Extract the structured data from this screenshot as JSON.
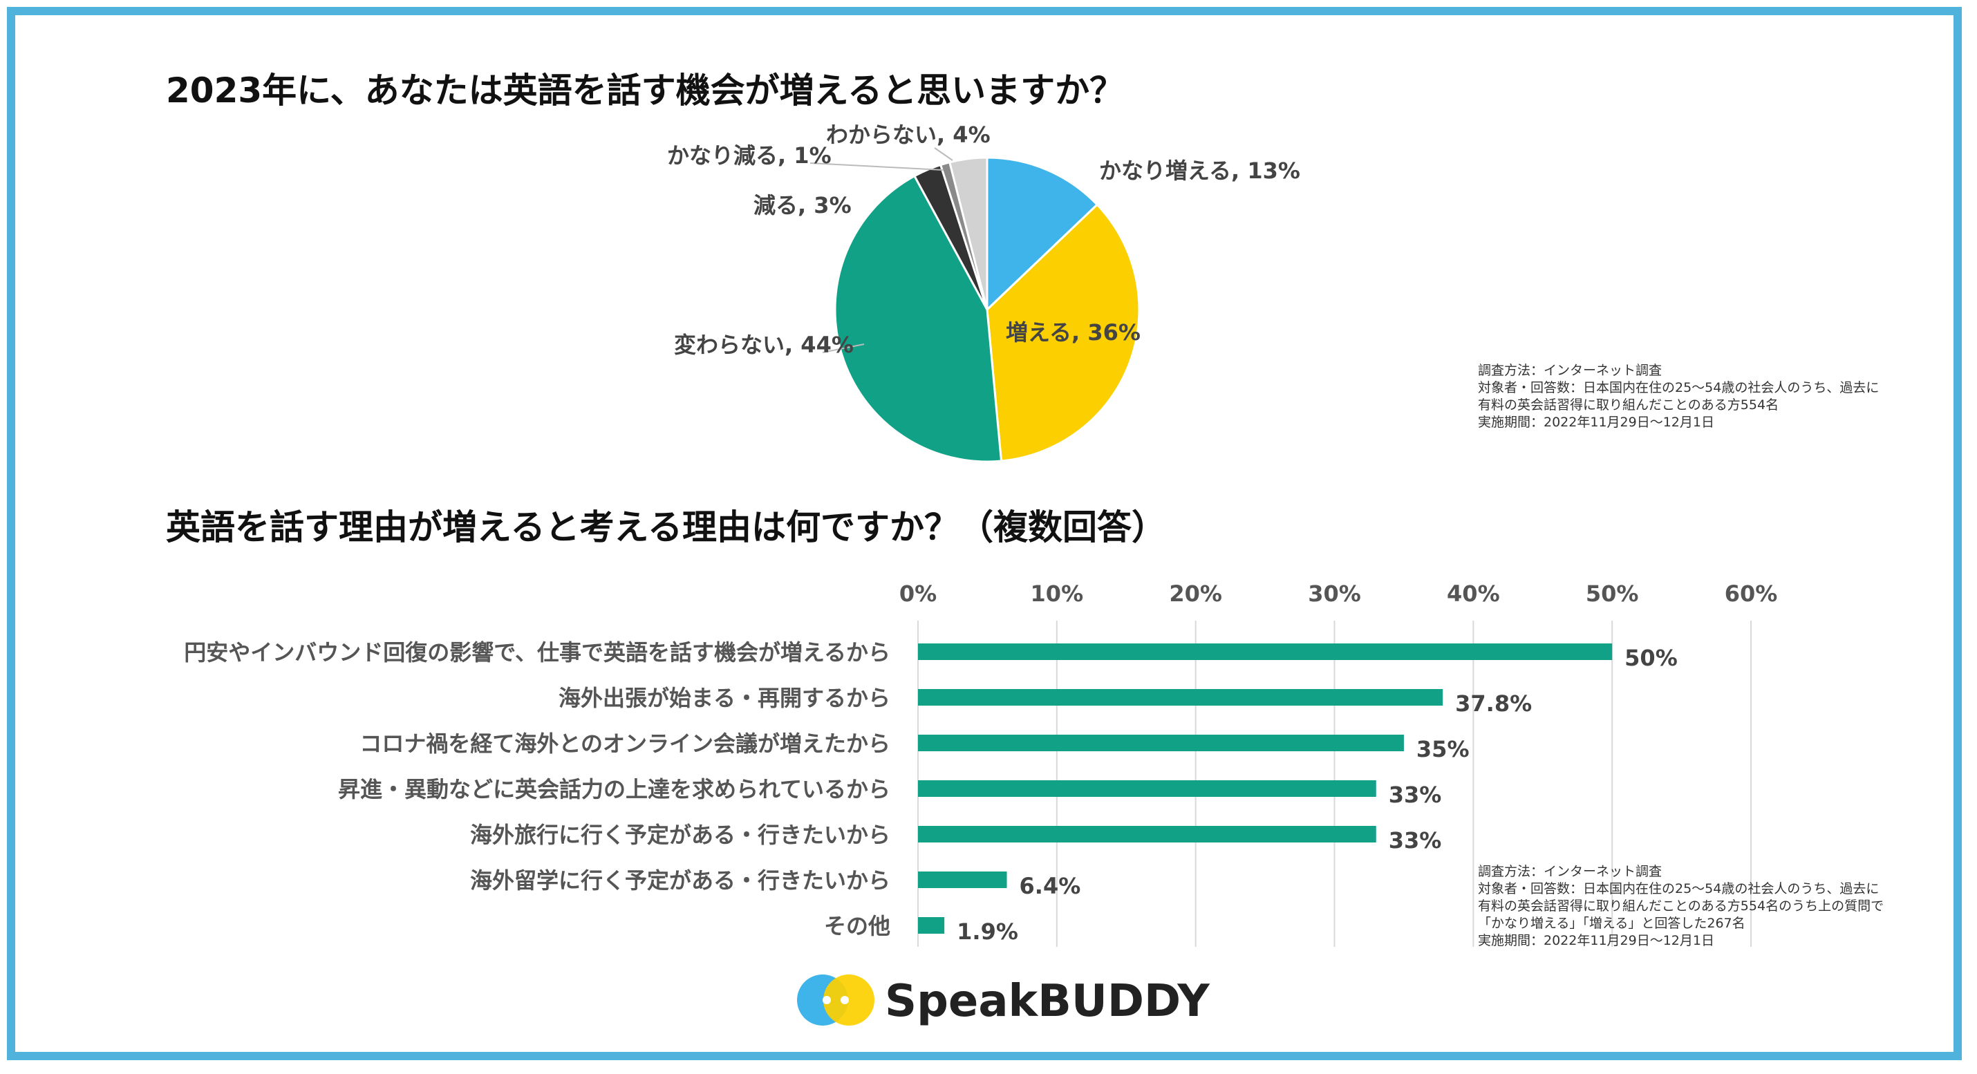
{
  "chart_data": [
    {
      "type": "pie",
      "title": "2023年に、あなたは英語を話す機会が増えると思いますか？",
      "slices": [
        {
          "label": "かなり増える",
          "value": 13,
          "display": "かなり増える, 13%",
          "color": "#3fb4ea"
        },
        {
          "label": "増える",
          "value": 36,
          "display": "増える, 36%",
          "color": "#fcd000"
        },
        {
          "label": "変わらない",
          "value": 44,
          "display": "変わらない, 44%",
          "color": "#10a187"
        },
        {
          "label": "減る",
          "value": 3,
          "display": "減る, 3%",
          "color": "#333333"
        },
        {
          "label": "かなり減る",
          "value": 1,
          "display": "かなり減る, 1%",
          "color": "#8a8a8a"
        },
        {
          "label": "わからない",
          "value": 4,
          "display": "わからない, 4%",
          "color": "#d2d2d2"
        }
      ],
      "note": [
        "調査方法：インターネット調査",
        "対象者・回答数：日本国内在住の25〜54歳の社会人のうち、過去に",
        "有料の英会話習得に取り組んだことのある方554名",
        "実施期間：2022年11月29日〜12月1日"
      ]
    },
    {
      "type": "bar",
      "orientation": "horizontal",
      "title": "英語を話す理由が増えると考える理由は何ですか？（複数回答）",
      "xlim": [
        0,
        60
      ],
      "ticks": [
        "0%",
        "10%",
        "20%",
        "30%",
        "40%",
        "50%",
        "60%"
      ],
      "tick_values": [
        0,
        10,
        20,
        30,
        40,
        50,
        60
      ],
      "grid": true,
      "bar_color": "#10a187",
      "categories": [
        "円安やインバウンド回復の影響で、仕事で英語を話す機会が増えるから",
        "海外出張が始まる・再開するから",
        "コロナ禍を経て海外とのオンライン会議が増えたから",
        "昇進・異動などに英会話力の上達を求められているから",
        "海外旅行に行く予定がある・行きたいから",
        "海外留学に行く予定がある・行きたいから",
        "その他"
      ],
      "values": [
        50,
        37.8,
        35,
        33,
        33,
        6.4,
        1.9
      ],
      "value_labels": [
        "50%",
        "37.8%",
        "35%",
        "33%",
        "33%",
        "6.4%",
        "1.9%"
      ],
      "note": [
        "調査方法：インターネット調査",
        "対象者・回答数：日本国内在住の25〜54歳の社会人のうち、過去に",
        "有料の英会話習得に取り組んだことのある方554名のうち上の質問で",
        "「かなり増える」「増える」と回答した267名",
        "実施期間：2022年11月29日〜12月1日"
      ]
    }
  ],
  "logo": {
    "text": "SpeakBUDDY",
    "colors": [
      "#3fb4ea",
      "#fcd000"
    ]
  }
}
